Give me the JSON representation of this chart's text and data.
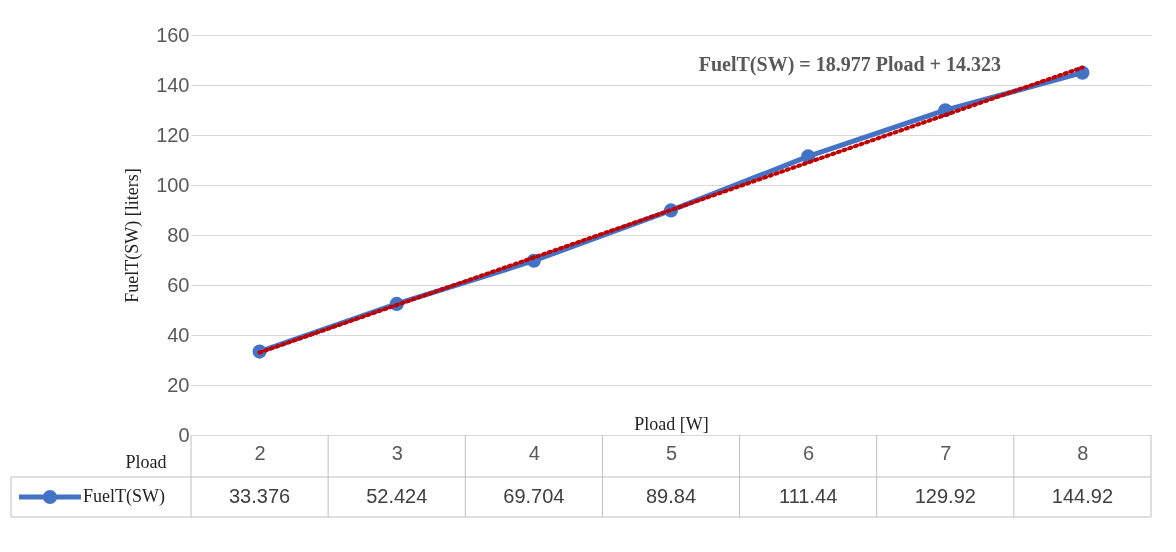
{
  "chart_data": {
    "type": "line",
    "xlabel": "Pload [W]",
    "ylabel": "FuelT(SW) [liters]",
    "legend_title": "Pload",
    "categories": [
      "2",
      "3",
      "4",
      "5",
      "6",
      "7",
      "8"
    ],
    "series": [
      {
        "name": "FuelT(SW)",
        "color": "#4472c4",
        "values": [
          33.376,
          52.424,
          69.704,
          89.84,
          111.44,
          129.92,
          144.92
        ],
        "value_labels": [
          "33.376",
          "52.424",
          "69.704",
          "89.84",
          "111.44",
          "129.92",
          "144.92"
        ],
        "marker": "circle",
        "line_style": "solid"
      },
      {
        "type": "line",
        "x": [
          "2",
          "8"
        ],
        "color": "#c00000",
        "values": [
          33,
          147
        ],
        "marker": "none",
        "line_style": "dotted"
      }
    ],
    "ylim": [
      0,
      160
    ],
    "yticks": [
      0,
      20,
      40,
      60,
      80,
      100,
      120,
      140,
      160
    ],
    "grid": "y",
    "legend": "bottom",
    "annotations": [
      "FuelT(SW) = 18.977 Pload + 14.323"
    ]
  }
}
